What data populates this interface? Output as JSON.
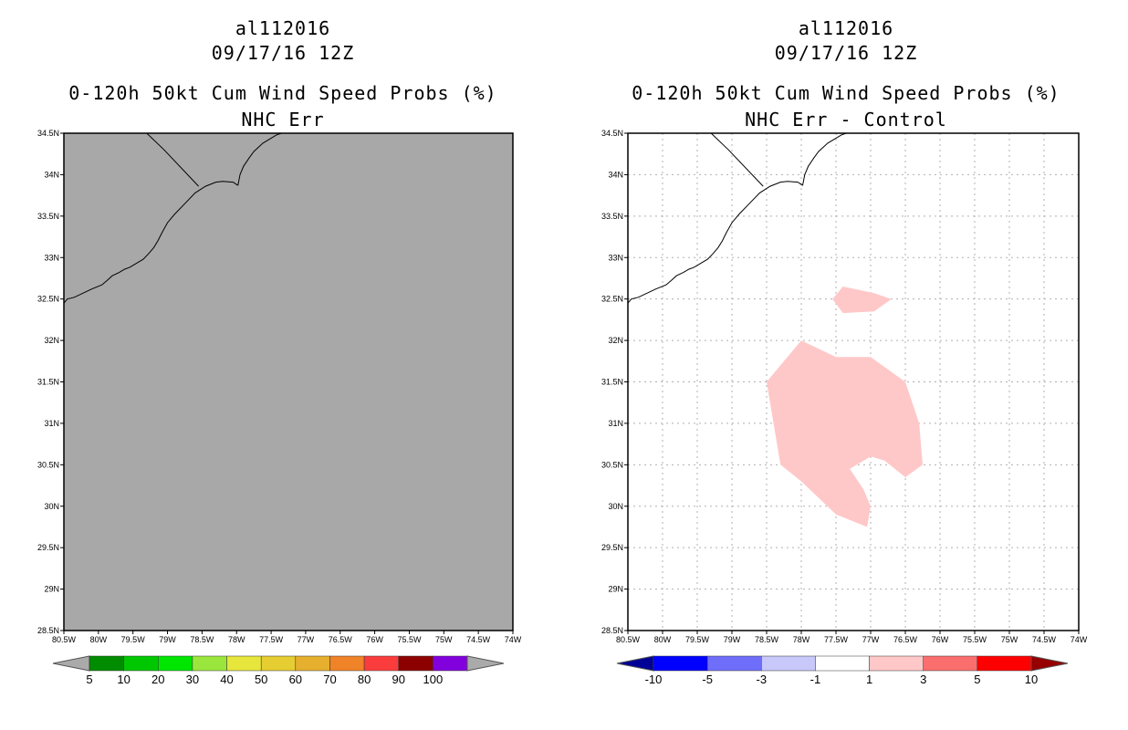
{
  "chart_data": [
    {
      "type": "map",
      "title_lines": [
        "al112016",
        "09/17/16 12Z",
        "0-120h 50kt Cum Wind Speed Probs (%)",
        "NHC Err"
      ],
      "xlim": [
        -80.5,
        -74.0
      ],
      "ylim": [
        28.5,
        34.5
      ],
      "x_tick_labels": [
        "80.5W",
        "80W",
        "79.5W",
        "79W",
        "78.5W",
        "78W",
        "77.5W",
        "77W",
        "76.5W",
        "76W",
        "75.5W",
        "75W",
        "74.5W",
        "74W"
      ],
      "y_tick_labels": [
        "28.5N",
        "29N",
        "29.5N",
        "30N",
        "30.5N",
        "31N",
        "31.5N",
        "32N",
        "32.5N",
        "33N",
        "33.5N",
        "34N",
        "34.5N"
      ],
      "background_color": "#a8a8a8",
      "gridlines": false,
      "colorbar": {
        "labels": [
          "5",
          "10",
          "20",
          "30",
          "40",
          "50",
          "60",
          "70",
          "80",
          "90",
          "100"
        ],
        "colors": [
          "#008c00",
          "#00c800",
          "#00e600",
          "#9be63c",
          "#e6e63c",
          "#e6cd32",
          "#e6af2d",
          "#f08228",
          "#fa3c3c",
          "#8c0000",
          "#8200dc"
        ],
        "under_color": "#aaaaaa",
        "over_color": "#aaaaaa"
      }
    },
    {
      "type": "map",
      "title_lines": [
        "al112016",
        "09/17/16 12Z",
        "0-120h 50kt Cum Wind Speed Probs (%)",
        "NHC Err - Control"
      ],
      "xlim": [
        -80.5,
        -74.0
      ],
      "ylim": [
        28.5,
        34.5
      ],
      "x_tick_labels": [
        "80.5W",
        "80W",
        "79.5W",
        "79W",
        "78.5W",
        "78W",
        "77.5W",
        "77W",
        "76.5W",
        "76W",
        "75.5W",
        "75W",
        "74.5W",
        "74W"
      ],
      "y_tick_labels": [
        "28.5N",
        "29N",
        "29.5N",
        "30N",
        "30.5N",
        "31N",
        "31.5N",
        "32N",
        "32.5N",
        "33N",
        "33.5N",
        "34N",
        "34.5N"
      ],
      "background_color": "#ffffff",
      "gridlines": true,
      "fill_color": "#ffc8c8",
      "fill_regions": [
        {
          "lonlat": [
            [
              -77.55,
              32.5
            ],
            [
              -77.4,
              32.65
            ],
            [
              -76.95,
              32.57
            ],
            [
              -76.7,
              32.5
            ],
            [
              -76.95,
              32.35
            ],
            [
              -77.4,
              32.33
            ]
          ]
        },
        {
          "lonlat": [
            [
              -78.0,
              32.0
            ],
            [
              -77.5,
              31.8
            ],
            [
              -77.0,
              31.8
            ],
            [
              -76.5,
              31.5
            ],
            [
              -76.3,
              31.0
            ],
            [
              -76.25,
              30.5
            ],
            [
              -76.5,
              30.35
            ],
            [
              -76.8,
              30.55
            ],
            [
              -77.0,
              30.6
            ],
            [
              -77.3,
              30.45
            ],
            [
              -77.1,
              30.2
            ],
            [
              -77.0,
              30.0
            ],
            [
              -77.05,
              29.75
            ],
            [
              -77.5,
              29.9
            ],
            [
              -78.0,
              30.3
            ],
            [
              -78.3,
              30.5
            ],
            [
              -78.4,
              31.0
            ],
            [
              -78.5,
              31.5
            ]
          ]
        }
      ],
      "colorbar": {
        "labels": [
          "-10",
          "-5",
          "-3",
          "-1",
          "1",
          "3",
          "5",
          "10"
        ],
        "colors": [
          "#0000ff",
          "#6e6efa",
          "#c8c8fa",
          "#ffffff",
          "#ffc8c8",
          "#fa6e6e",
          "#ff0000"
        ],
        "under_color": "#000096",
        "over_color": "#960000"
      }
    }
  ]
}
